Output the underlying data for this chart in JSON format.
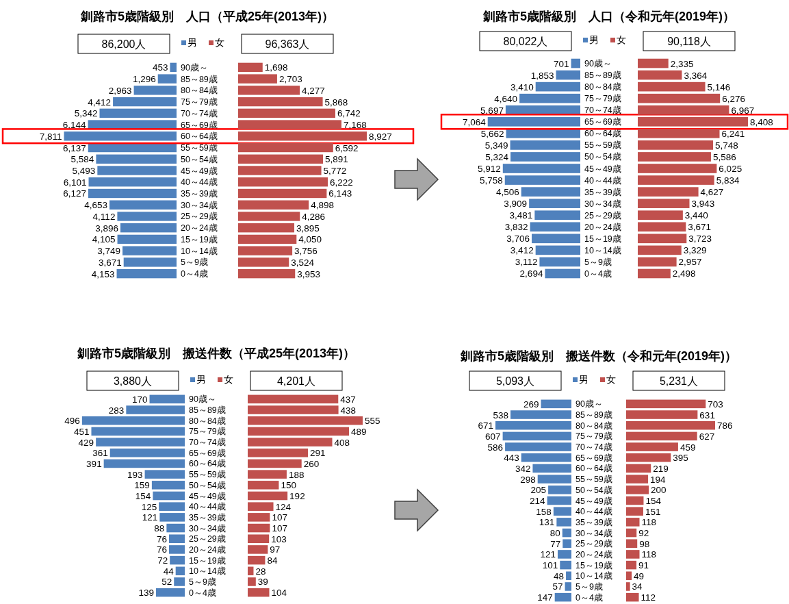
{
  "chart_data": [
    {
      "type": "bar",
      "orientation": "horizontal",
      "title": "釧路市5歳階級別　人口（平成25年(2013年)）",
      "categories": [
        "90歳～",
        "85～89歳",
        "80～84歳",
        "75～79歳",
        "70～74歳",
        "65～69歳",
        "60～64歳",
        "55～59歳",
        "50～54歳",
        "45～49歳",
        "40～44歳",
        "35～39歳",
        "30～34歳",
        "25～29歳",
        "20～24歳",
        "15～19歳",
        "10～14歳",
        "5～9歳",
        "0～4歳"
      ],
      "series": [
        {
          "name": "男",
          "color": "#4f81bd",
          "values": [
            453,
            1296,
            2963,
            4412,
            5342,
            6144,
            7811,
            6137,
            5584,
            5493,
            6101,
            6127,
            4653,
            4112,
            3896,
            4105,
            3749,
            3671,
            4153
          ],
          "value_labels": [
            "453",
            "1,296",
            "2,963",
            "4,412",
            "5,342",
            "6,144",
            "7,811",
            "6,137",
            "5,584",
            "5,493",
            "6,101",
            "6,127",
            "4,653",
            "4,112",
            "3,896",
            "4,105",
            "3,749",
            "3,671",
            "4,153"
          ]
        }
      ],
      "legend": "top",
      "annotations": [
        "86,200人"
      ]
    },
    {
      "type": "bar",
      "orientation": "horizontal",
      "categories": [
        null,
        null,
        null,
        null,
        null,
        null,
        null,
        null,
        null,
        null,
        null,
        null,
        null,
        null,
        null,
        null,
        null,
        null,
        null
      ],
      "series": [
        {
          "name": "女",
          "color": "#c0504d",
          "values": [
            1698,
            2703,
            4277,
            5868,
            6742,
            7168,
            8927,
            6592,
            5891,
            5772,
            6222,
            6143,
            4898,
            4286,
            3895,
            4050,
            3756,
            3524,
            3953
          ],
          "value_labels": [
            "1,698",
            "2,703",
            "4,277",
            "5,868",
            "6,742",
            "7,168",
            "8,927",
            "6,592",
            "5,891",
            "5,772",
            "6,222",
            "6,143",
            "4,898",
            "4,286",
            "3,895",
            "4,050",
            "3,756",
            "3,524",
            "3,953"
          ]
        }
      ],
      "legend": "top",
      "annotations": [
        "96,363人"
      ]
    },
    {
      "type": "bar",
      "orientation": "horizontal",
      "title": "釧路市5歳階級別　人口（令和元年(2019年)）",
      "categories": [
        "90歳～",
        "85～89歳",
        "80～84歳",
        "75～79歳",
        "70～74歳",
        "65～69歳",
        "60～64歳",
        "55～59歳",
        "50～54歳",
        "45～49歳",
        "40～44歳",
        "35～39歳",
        "30～34歳",
        "25～29歳",
        "20～24歳",
        "15～19歳",
        "10～14歳",
        "5～9歳",
        "0～4歳"
      ],
      "series": [
        {
          "name": "男",
          "color": "#4f81bd",
          "values": [
            701,
            1853,
            3410,
            4640,
            5697,
            7064,
            5662,
            5349,
            5324,
            5912,
            5758,
            4506,
            3909,
            3481,
            3832,
            3706,
            3412,
            3112,
            2694
          ],
          "value_labels": [
            "701",
            "1,853",
            "3,410",
            "4,640",
            "5,697",
            "7,064",
            "5,662",
            "5,349",
            "5,324",
            "5,912",
            "5,758",
            "4,506",
            "3,909",
            "3,481",
            "3,832",
            "3,706",
            "3,412",
            "3,112",
            "2,694"
          ]
        }
      ],
      "legend": "top",
      "annotations": [
        "80,022人"
      ]
    },
    {
      "type": "bar",
      "orientation": "horizontal",
      "categories": [
        null,
        null,
        null,
        null,
        null,
        null,
        null,
        null,
        null,
        null,
        null,
        null,
        null,
        null,
        null,
        null,
        null,
        null,
        null
      ],
      "series": [
        {
          "name": "女",
          "color": "#c0504d",
          "values": [
            2335,
            3364,
            5146,
            6276,
            6967,
            8408,
            6241,
            5748,
            5586,
            6025,
            5834,
            4627,
            3943,
            3440,
            3671,
            3723,
            3329,
            2957,
            2498
          ],
          "value_labels": [
            "2,335",
            "3,364",
            "5,146",
            "6,276",
            "6,967",
            "8,408",
            "6,241",
            "5,748",
            "5,586",
            "6,025",
            "5,834",
            "4,627",
            "3,943",
            "3,440",
            "3,671",
            "3,723",
            "3,329",
            "2,957",
            "2,498"
          ]
        }
      ],
      "legend": "top",
      "annotations": [
        "90,118人"
      ]
    },
    {
      "type": "bar",
      "orientation": "horizontal",
      "title": "釧路市5歳階級別　搬送件数（平成25年(2013年)）",
      "categories": [
        "90歳～",
        "85～89歳",
        "80～84歳",
        "75～79歳",
        "70～74歳",
        "65～69歳",
        "60～64歳",
        "55～59歳",
        "50～54歳",
        "45～49歳",
        "40～44歳",
        "35～39歳",
        "30～34歳",
        "25～29歳",
        "20～24歳",
        "15～19歳",
        "10～14歳",
        "5～9歳",
        "0～4歳"
      ],
      "series": [
        {
          "name": "男",
          "color": "#4f81bd",
          "values": [
            170,
            283,
            496,
            451,
            429,
            361,
            391,
            193,
            159,
            154,
            125,
            121,
            88,
            76,
            76,
            72,
            44,
            52,
            139
          ],
          "value_labels": [
            "170",
            "283",
            "496",
            "451",
            "429",
            "361",
            "391",
            "193",
            "159",
            "154",
            "125",
            "121",
            "88",
            "76",
            "76",
            "72",
            "44",
            "52",
            "139"
          ]
        }
      ],
      "legend": "top",
      "annotations": [
        "3,880人"
      ]
    },
    {
      "type": "bar",
      "orientation": "horizontal",
      "categories": [
        null,
        null,
        null,
        null,
        null,
        null,
        null,
        null,
        null,
        null,
        null,
        null,
        null,
        null,
        null,
        null,
        null,
        null,
        null
      ],
      "series": [
        {
          "name": "女",
          "color": "#c0504d",
          "values": [
            437,
            438,
            555,
            489,
            408,
            291,
            260,
            188,
            150,
            192,
            124,
            107,
            107,
            103,
            97,
            84,
            28,
            39,
            104
          ],
          "value_labels": [
            "437",
            "438",
            "555",
            "489",
            "408",
            "291",
            "260",
            "188",
            "150",
            "192",
            "124",
            "107",
            "107",
            "103",
            "97",
            "84",
            "28",
            "39",
            "104"
          ]
        }
      ],
      "legend": "top",
      "annotations": [
        "4,201人"
      ]
    },
    {
      "type": "bar",
      "orientation": "horizontal",
      "title": "釧路市5歳階級別　搬送件数（令和元年(2019年)）",
      "categories": [
        "90歳～",
        "85～89歳",
        "80～84歳",
        "75～79歳",
        "70～74歳",
        "65～69歳",
        "60～64歳",
        "55～59歳",
        "50～54歳",
        "45～49歳",
        "40～44歳",
        "35～39歳",
        "30～34歳",
        "25～29歳",
        "20～24歳",
        "15～19歳",
        "10～14歳",
        "5～9歳",
        "0～4歳"
      ],
      "series": [
        {
          "name": "男",
          "color": "#4f81bd",
          "values": [
            269,
            538,
            671,
            607,
            586,
            443,
            342,
            298,
            205,
            214,
            158,
            131,
            80,
            77,
            121,
            101,
            48,
            57,
            147
          ],
          "value_labels": [
            "269",
            "538",
            "671",
            "607",
            "586",
            "443",
            "342",
            "298",
            "205",
            "214",
            "158",
            "131",
            "80",
            "77",
            "121",
            "101",
            "48",
            "57",
            "147"
          ]
        }
      ],
      "legend": "top",
      "annotations": [
        "5,093人"
      ]
    },
    {
      "type": "bar",
      "orientation": "horizontal",
      "categories": [
        null,
        null,
        null,
        null,
        null,
        null,
        null,
        null,
        null,
        null,
        null,
        null,
        null,
        null,
        null,
        null,
        null,
        null,
        null
      ],
      "series": [
        {
          "name": "女",
          "color": "#c0504d",
          "values": [
            703,
            631,
            786,
            627,
            459,
            395,
            219,
            194,
            200,
            154,
            151,
            118,
            92,
            98,
            118,
            91,
            49,
            34,
            112
          ],
          "value_labels": [
            "703",
            "631",
            "786",
            "627",
            "459",
            "395",
            "219",
            "194",
            "200",
            "154",
            "151",
            "118",
            "92",
            "98",
            "118",
            "91",
            "49",
            "34",
            "112"
          ]
        }
      ],
      "legend": "top",
      "annotations": [
        "5,231人"
      ]
    }
  ]
}
